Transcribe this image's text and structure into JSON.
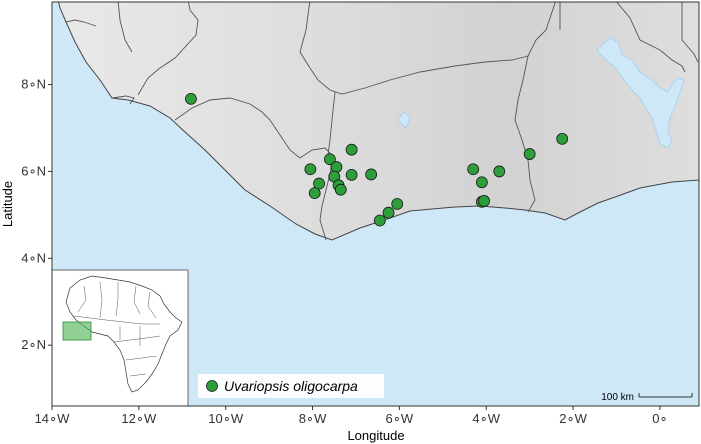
{
  "chart_data": {
    "type": "scatter",
    "xlabel": "Longitude",
    "ylabel": "Latitude",
    "xlim": [
      -14,
      0.9
    ],
    "ylim": [
      0.6,
      9.9
    ],
    "x_ticks": [
      {
        "value": -14,
        "label": "14∘W"
      },
      {
        "value": -12,
        "label": "12∘W"
      },
      {
        "value": -10,
        "label": "10∘W"
      },
      {
        "value": -8,
        "label": "8∘W"
      },
      {
        "value": -6,
        "label": "6∘W"
      },
      {
        "value": -4,
        "label": "4∘W"
      },
      {
        "value": -2,
        "label": "2∘W"
      },
      {
        "value": 0,
        "label": "0∘"
      }
    ],
    "y_ticks": [
      {
        "value": 2,
        "label": "2∘N"
      },
      {
        "value": 4,
        "label": "4∘N"
      },
      {
        "value": 6,
        "label": "6∘N"
      },
      {
        "value": 8,
        "label": "8∘N"
      }
    ],
    "series": [
      {
        "name": "Uvariopsis oligocarpa",
        "color": "#2e9e3a",
        "points": [
          [
            -10.8,
            7.67
          ],
          [
            -7.6,
            6.28
          ],
          [
            -7.45,
            6.1
          ],
          [
            -7.1,
            6.5
          ],
          [
            -8.05,
            6.05
          ],
          [
            -7.85,
            5.72
          ],
          [
            -7.5,
            5.88
          ],
          [
            -7.4,
            5.68
          ],
          [
            -7.35,
            5.58
          ],
          [
            -7.95,
            5.5
          ],
          [
            -7.1,
            5.92
          ],
          [
            -6.65,
            5.93
          ],
          [
            -6.05,
            5.25
          ],
          [
            -6.25,
            5.05
          ],
          [
            -6.45,
            4.87
          ],
          [
            -4.3,
            6.05
          ],
          [
            -4.1,
            5.75
          ],
          [
            -3.7,
            6.0
          ],
          [
            -4.1,
            5.3
          ],
          [
            -4.05,
            5.32
          ],
          [
            -3.0,
            6.4
          ],
          [
            -2.25,
            6.75
          ]
        ]
      }
    ],
    "legend_position": "bottom-center",
    "scale_bar": "100 km",
    "inset": "Africa locator map"
  }
}
